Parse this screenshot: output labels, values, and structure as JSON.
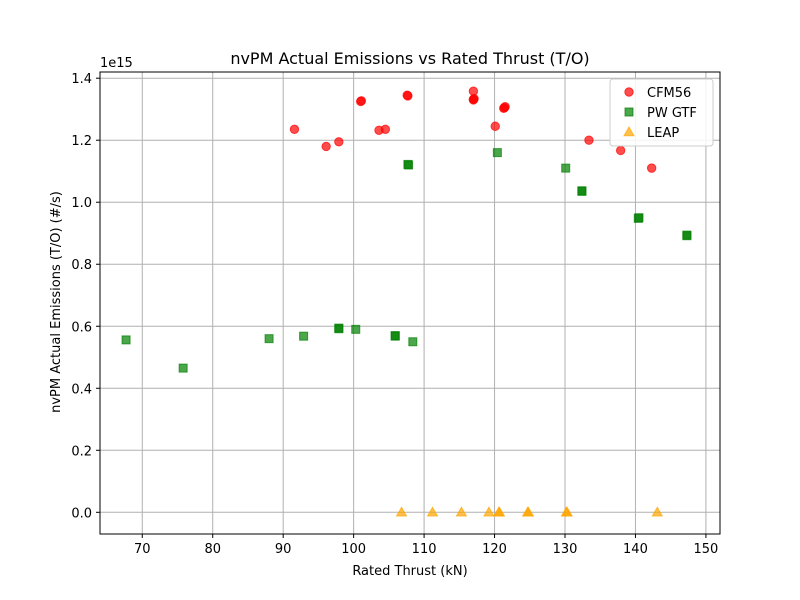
{
  "chart_data": {
    "type": "scatter",
    "title": "nvPM Actual Emissions vs Rated Thrust (T/O)",
    "xlabel": "Rated Thrust (kN)",
    "ylabel": "nvPM Actual Emissions (T/O) (#/s)",
    "y_offset_label": "1e15",
    "xlim": [
      64,
      152
    ],
    "ylim": [
      -0.07,
      1.42
    ],
    "y_scale_factor": 1000000000000000.0,
    "xticks": [
      70,
      80,
      90,
      100,
      110,
      120,
      130,
      140,
      150
    ],
    "yticks": [
      0.0,
      0.2,
      0.4,
      0.6,
      0.8,
      1.0,
      1.2,
      1.4
    ],
    "xtick_labels": [
      "70",
      "80",
      "90",
      "100",
      "110",
      "120",
      "130",
      "140",
      "150"
    ],
    "ytick_labels": [
      "0.0",
      "0.2",
      "0.4",
      "0.6",
      "0.8",
      "1.0",
      "1.2",
      "1.4"
    ],
    "grid": true,
    "legend_position": "top-right",
    "series": [
      {
        "name": "CFM56",
        "marker": "circle",
        "color": "#ff0000",
        "points": [
          [
            91.6,
            1.235
          ],
          [
            96.1,
            1.18
          ],
          [
            97.9,
            1.195
          ],
          [
            101.0,
            1.325
          ],
          [
            101.1,
            1.327
          ],
          [
            103.6,
            1.232
          ],
          [
            104.5,
            1.235
          ],
          [
            107.6,
            1.345
          ],
          [
            107.7,
            1.343
          ],
          [
            117.0,
            1.358
          ],
          [
            117.0,
            1.332
          ],
          [
            117.1,
            1.334
          ],
          [
            117.0,
            1.33
          ],
          [
            120.1,
            1.245
          ],
          [
            121.4,
            1.305
          ],
          [
            121.5,
            1.308
          ],
          [
            121.3,
            1.303
          ],
          [
            133.4,
            1.2
          ],
          [
            137.9,
            1.167
          ],
          [
            142.3,
            1.11
          ]
        ]
      },
      {
        "name": "PW GTF",
        "marker": "square",
        "color": "#008000",
        "points": [
          [
            67.7,
            0.556
          ],
          [
            75.8,
            0.465
          ],
          [
            88.0,
            0.56
          ],
          [
            92.9,
            0.568
          ],
          [
            97.9,
            0.594
          ],
          [
            97.9,
            0.592
          ],
          [
            100.3,
            0.59
          ],
          [
            105.9,
            0.57
          ],
          [
            105.9,
            0.568
          ],
          [
            108.4,
            0.55
          ],
          [
            107.7,
            1.122
          ],
          [
            107.8,
            1.12
          ],
          [
            120.4,
            1.16
          ],
          [
            130.1,
            1.11
          ],
          [
            132.4,
            1.035
          ],
          [
            132.4,
            1.037
          ],
          [
            140.4,
            0.948
          ],
          [
            140.5,
            0.95
          ],
          [
            147.3,
            0.892
          ],
          [
            147.3,
            0.894
          ]
        ]
      },
      {
        "name": "LEAP",
        "marker": "triangle",
        "color": "#ffa500",
        "points": [
          [
            106.8,
            0.0
          ],
          [
            111.2,
            0.0
          ],
          [
            115.3,
            0.0
          ],
          [
            119.2,
            0.0
          ],
          [
            120.6,
            0.0
          ],
          [
            120.7,
            0.0
          ],
          [
            124.7,
            0.0
          ],
          [
            124.8,
            0.0
          ],
          [
            130.2,
            0.0
          ],
          [
            130.3,
            0.0
          ],
          [
            143.1,
            0.0
          ]
        ]
      }
    ]
  }
}
